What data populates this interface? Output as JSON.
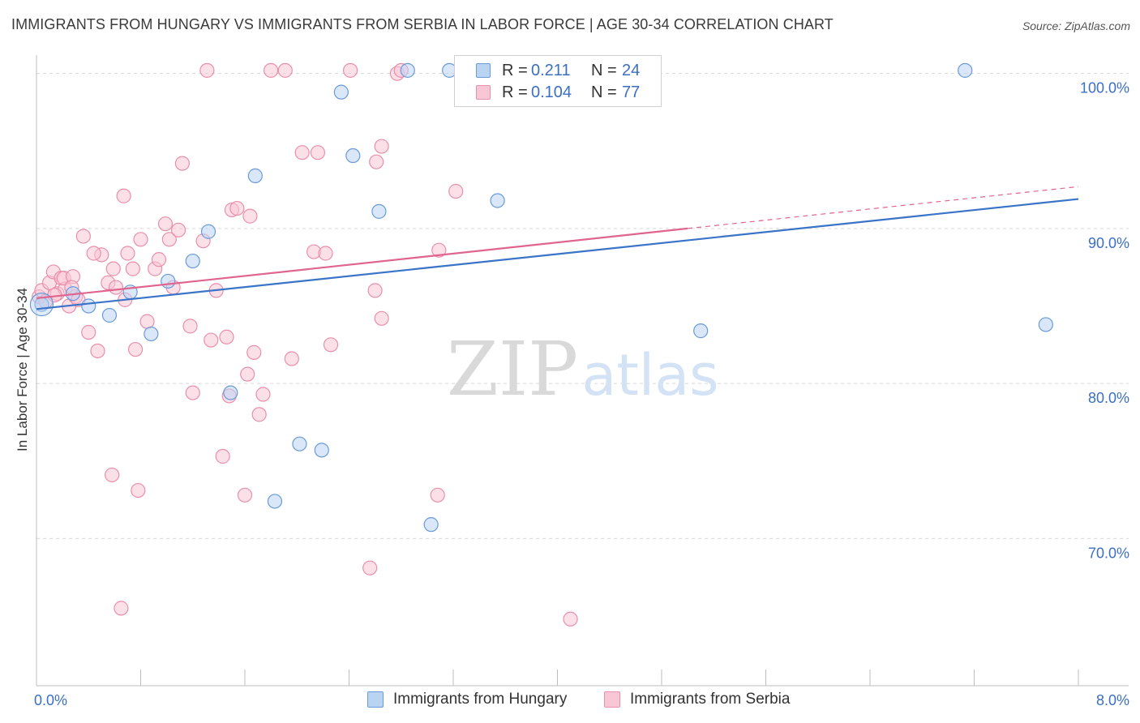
{
  "title": "IMMIGRANTS FROM HUNGARY VS IMMIGRANTS FROM SERBIA IN LABOR FORCE | AGE 30-34 CORRELATION CHART",
  "source": "Source: ZipAtlas.com",
  "watermark": {
    "zip": "ZIP",
    "atlas": "atlas"
  },
  "legend": {
    "r_label": "R =",
    "n_label": "N =",
    "hungary": {
      "r": "0.211",
      "n": "24"
    },
    "serbia": {
      "r": "0.104",
      "n": "77"
    }
  },
  "colors": {
    "hungary_fill": "#b9d3f3",
    "hungary_stroke": "#6a9bd8",
    "hungary_line": "#3a74c8",
    "serbia_fill": "#f9c6d5",
    "serbia_stroke": "#ea8fab",
    "serbia_line": "#e0648e",
    "axis_label": "#3b6fc4",
    "grid": "#d8d8d8"
  },
  "chart_data": {
    "type": "scatter",
    "title": "IMMIGRANTS FROM HUNGARY VS IMMIGRANTS FROM SERBIA IN LABOR FORCE | AGE 30-34 CORRELATION CHART",
    "xlabel": "",
    "ylabel": "In Labor Force | Age 30-34",
    "xlim": [
      0,
      8
    ],
    "ylim": [
      60.5,
      101.5
    ],
    "x_tick_labels": {
      "min": "0.0%",
      "max": "8.0%"
    },
    "y_ticks": [
      {
        "value": 100,
        "label": "100.0%"
      },
      {
        "value": 90,
        "label": "90.0%"
      },
      {
        "value": 80,
        "label": "80.0%"
      },
      {
        "value": 70,
        "label": "70.0%"
      }
    ],
    "series": [
      {
        "name": "Immigrants from Hungary",
        "r": 0.211,
        "n": 24,
        "trend": {
          "x0": 0,
          "y0": 84.8,
          "x1": 8.0,
          "y1": 91.9
        },
        "points": [
          [
            0.04,
            85.1
          ],
          [
            0.28,
            85.8
          ],
          [
            0.4,
            85.0
          ],
          [
            0.56,
            84.4
          ],
          [
            0.72,
            85.9
          ],
          [
            0.88,
            83.2
          ],
          [
            1.01,
            86.6
          ],
          [
            1.2,
            87.9
          ],
          [
            1.32,
            89.8
          ],
          [
            1.49,
            79.4
          ],
          [
            1.68,
            93.4
          ],
          [
            1.83,
            72.4
          ],
          [
            2.02,
            76.1
          ],
          [
            2.19,
            75.7
          ],
          [
            2.34,
            98.8
          ],
          [
            2.43,
            94.7
          ],
          [
            2.63,
            91.1
          ],
          [
            2.85,
            100.2
          ],
          [
            3.03,
            70.9
          ],
          [
            3.17,
            100.2
          ],
          [
            3.54,
            91.8
          ],
          [
            5.1,
            83.4
          ],
          [
            7.13,
            100.2
          ],
          [
            7.75,
            83.8
          ]
        ]
      },
      {
        "name": "Immigrants from Serbia",
        "r": 0.104,
        "n": 77,
        "trend": {
          "x0": 0,
          "y0": 85.5,
          "x1": 5.0,
          "y1": 90.0,
          "dash_to": {
            "x": 8.0,
            "y": 92.7
          }
        },
        "points": [
          [
            0.02,
            85.6
          ],
          [
            0.04,
            86.0
          ],
          [
            0.07,
            85.3
          ],
          [
            0.1,
            86.5
          ],
          [
            0.13,
            87.2
          ],
          [
            0.16,
            85.8
          ],
          [
            0.19,
            86.8
          ],
          [
            0.22,
            86.1
          ],
          [
            0.25,
            85.0
          ],
          [
            0.21,
            86.8
          ],
          [
            0.14,
            85.7
          ],
          [
            0.28,
            86.9
          ],
          [
            0.3,
            85.6
          ],
          [
            0.32,
            85.4
          ],
          [
            0.27,
            86.2
          ],
          [
            0.36,
            89.5
          ],
          [
            0.4,
            83.3
          ],
          [
            0.47,
            82.1
          ],
          [
            0.5,
            88.3
          ],
          [
            0.55,
            86.5
          ],
          [
            0.59,
            87.4
          ],
          [
            0.61,
            86.2
          ],
          [
            0.44,
            88.4
          ],
          [
            0.68,
            85.4
          ],
          [
            0.7,
            88.4
          ],
          [
            0.74,
            87.4
          ],
          [
            0.76,
            82.2
          ],
          [
            0.8,
            89.3
          ],
          [
            0.85,
            84.0
          ],
          [
            0.91,
            87.4
          ],
          [
            0.94,
            88.0
          ],
          [
            0.67,
            92.1
          ],
          [
            0.99,
            90.3
          ],
          [
            1.02,
            89.3
          ],
          [
            1.05,
            86.2
          ],
          [
            1.09,
            89.9
          ],
          [
            1.12,
            94.2
          ],
          [
            1.18,
            83.7
          ],
          [
            1.2,
            79.4
          ],
          [
            1.28,
            89.2
          ],
          [
            1.31,
            100.2
          ],
          [
            1.34,
            82.8
          ],
          [
            1.38,
            86.0
          ],
          [
            1.43,
            75.3
          ],
          [
            1.46,
            83.0
          ],
          [
            1.48,
            79.2
          ],
          [
            1.5,
            91.2
          ],
          [
            1.54,
            91.3
          ],
          [
            1.6,
            72.8
          ],
          [
            1.62,
            80.6
          ],
          [
            1.64,
            90.8
          ],
          [
            1.67,
            82.0
          ],
          [
            1.71,
            78.0
          ],
          [
            1.74,
            79.3
          ],
          [
            1.8,
            100.2
          ],
          [
            1.91,
            100.2
          ],
          [
            1.96,
            81.6
          ],
          [
            2.04,
            94.9
          ],
          [
            2.13,
            88.5
          ],
          [
            2.16,
            94.9
          ],
          [
            2.22,
            88.4
          ],
          [
            2.26,
            82.5
          ],
          [
            2.41,
            100.2
          ],
          [
            2.56,
            68.1
          ],
          [
            2.61,
            94.3
          ],
          [
            2.65,
            95.3
          ],
          [
            2.6,
            86.0
          ],
          [
            2.65,
            84.2
          ],
          [
            2.77,
            100.0
          ],
          [
            2.8,
            100.2
          ],
          [
            3.09,
            88.6
          ],
          [
            3.22,
            92.4
          ],
          [
            3.08,
            72.8
          ],
          [
            0.58,
            74.1
          ],
          [
            0.78,
            73.1
          ],
          [
            0.65,
            65.5
          ],
          [
            4.1,
            64.8
          ]
        ]
      }
    ]
  }
}
